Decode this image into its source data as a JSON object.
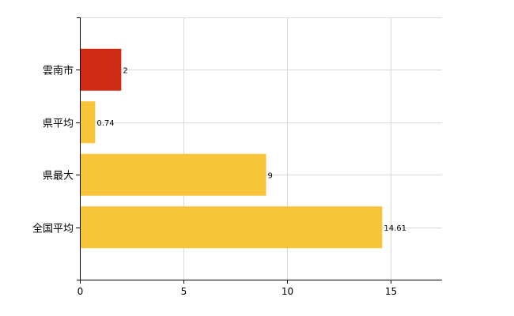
{
  "chart_data": {
    "type": "bar",
    "orientation": "horizontal",
    "categories": [
      "雲南市",
      "県平均",
      "県最大",
      "全国平均"
    ],
    "values": [
      2,
      0.74,
      9,
      14.61
    ],
    "data_labels": [
      "2",
      "0.74",
      "9",
      "14.61"
    ],
    "bar_colors": [
      "#d02a12",
      "#f7c53a",
      "#f7c53a",
      "#f7c53a"
    ],
    "xlim": [
      0,
      17.5
    ],
    "xticks": [
      0,
      5,
      10,
      15
    ],
    "xtick_labels": [
      "0",
      "5",
      "10",
      "15"
    ],
    "grid": true,
    "legend": "none",
    "title": "",
    "xlabel": "",
    "ylabel": ""
  }
}
